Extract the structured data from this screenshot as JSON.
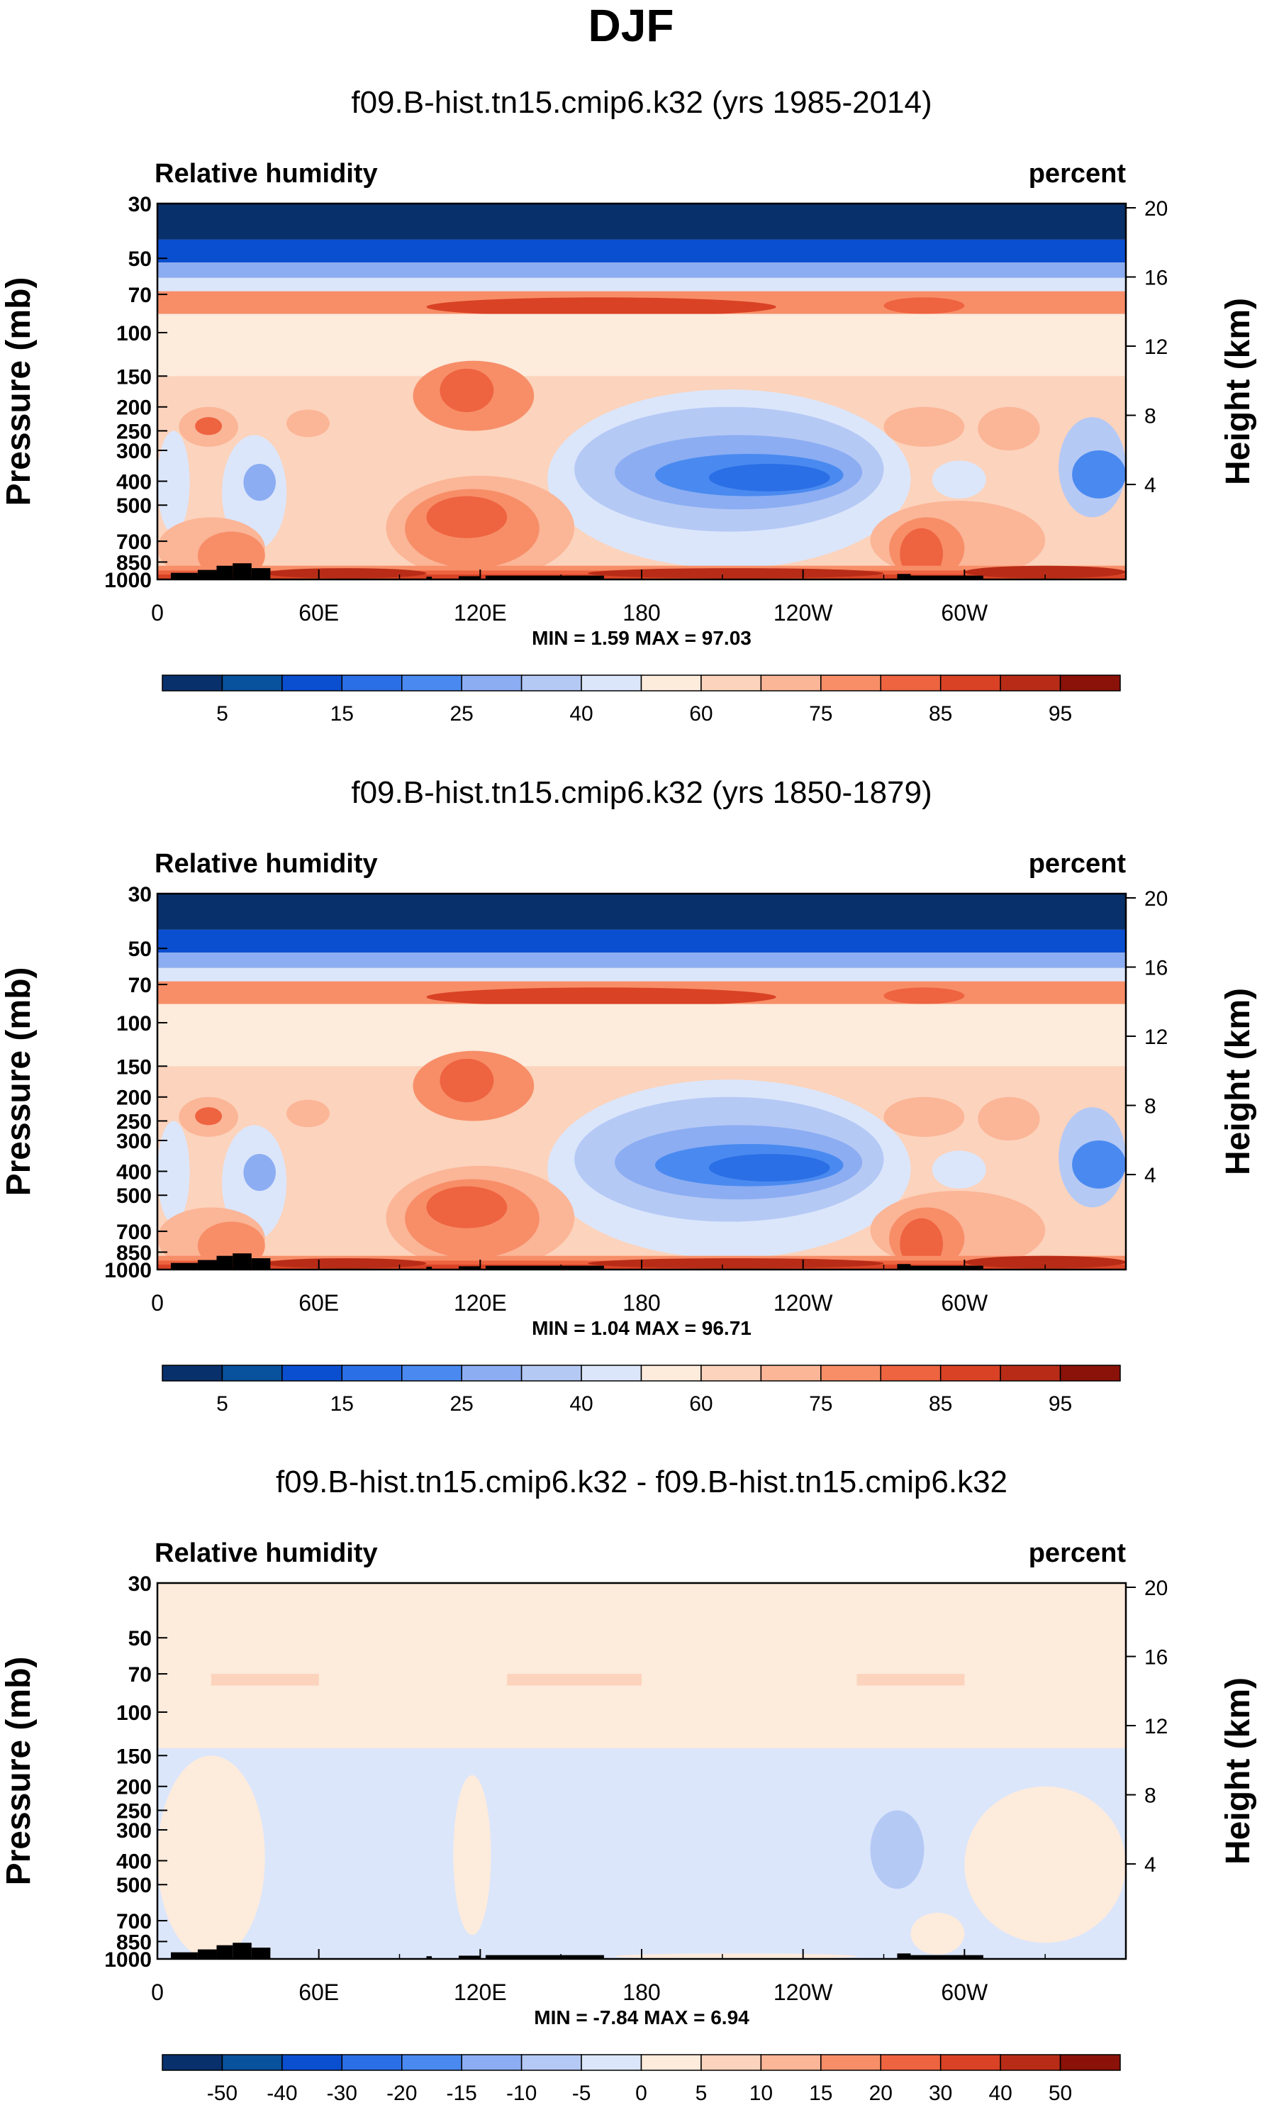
{
  "figure_title": "DJF",
  "colors": {
    "rh_levels": [
      "#08306b",
      "#08519c",
      "#0b4fd1",
      "#2b6fe6",
      "#4a8af0",
      "#8cadf2",
      "#b5c9f5",
      "#dbe6fb",
      "#fdebdc",
      "#fcd3bc",
      "#fbb597",
      "#f78e68",
      "#ee6340",
      "#d94225",
      "#b82c17",
      "#8a1208"
    ],
    "diff_levels": [
      "#08306b",
      "#08519c",
      "#0b4fd1",
      "#2b6fe6",
      "#4a8af0",
      "#8cadf2",
      "#b5c9f5",
      "#dbe6fb",
      "#fdebdc",
      "#fcd3bc",
      "#fbb597",
      "#f78e68",
      "#ee6340",
      "#d94225",
      "#b82c17",
      "#8a1208"
    ],
    "topography": "#000000"
  },
  "chart_data": [
    {
      "type": "heatmap",
      "title": "f09.B-hist.tn15.cmip6.k32 (yrs 1985-2014)",
      "left_label": "Relative humidity",
      "right_label": "percent",
      "ylabel": "Pressure (mb)",
      "ylabel_right": "Height (km)",
      "x_tick_labels": [
        "0",
        "60E",
        "120E",
        "180",
        "120W",
        "60W"
      ],
      "x_ticks_deg": [
        0,
        60,
        120,
        180,
        240,
        300
      ],
      "xlim": [
        0,
        360
      ],
      "y_tick_labels": [
        "30",
        "50",
        "70",
        "100",
        "150",
        "200",
        "250",
        "300",
        "400",
        "500",
        "700",
        "850",
        "1000"
      ],
      "y_ticks_mb": [
        30,
        50,
        70,
        100,
        150,
        200,
        250,
        300,
        400,
        500,
        700,
        850,
        1000
      ],
      "ylim_mb": [
        1000,
        30
      ],
      "height_tick_labels": [
        "20",
        "16",
        "12",
        "8",
        "4"
      ],
      "height_ticks_km": [
        20,
        16,
        12,
        8,
        4
      ],
      "stats_text": "MIN =   1.59   MAX =  97.03",
      "min": 1.59,
      "max": 97.03,
      "colorbar_labels": [
        "5",
        "15",
        "25",
        "40",
        "60",
        "75",
        "85",
        "95"
      ],
      "colorbar_label_positions": [
        1,
        3,
        5,
        7,
        9,
        11,
        13,
        15
      ],
      "palette": "rh"
    },
    {
      "type": "heatmap",
      "title": "f09.B-hist.tn15.cmip6.k32 (yrs 1850-1879)",
      "left_label": "Relative humidity",
      "right_label": "percent",
      "ylabel": "Pressure (mb)",
      "ylabel_right": "Height (km)",
      "x_tick_labels": [
        "0",
        "60E",
        "120E",
        "180",
        "120W",
        "60W"
      ],
      "x_ticks_deg": [
        0,
        60,
        120,
        180,
        240,
        300
      ],
      "xlim": [
        0,
        360
      ],
      "y_tick_labels": [
        "30",
        "50",
        "70",
        "100",
        "150",
        "200",
        "250",
        "300",
        "400",
        "500",
        "700",
        "850",
        "1000"
      ],
      "y_ticks_mb": [
        30,
        50,
        70,
        100,
        150,
        200,
        250,
        300,
        400,
        500,
        700,
        850,
        1000
      ],
      "ylim_mb": [
        1000,
        30
      ],
      "height_tick_labels": [
        "20",
        "16",
        "12",
        "8",
        "4"
      ],
      "height_ticks_km": [
        20,
        16,
        12,
        8,
        4
      ],
      "stats_text": "MIN =   1.04   MAX =  96.71",
      "min": 1.04,
      "max": 96.71,
      "colorbar_labels": [
        "5",
        "15",
        "25",
        "40",
        "60",
        "75",
        "85",
        "95"
      ],
      "colorbar_label_positions": [
        1,
        3,
        5,
        7,
        9,
        11,
        13,
        15
      ],
      "palette": "rh"
    },
    {
      "type": "heatmap",
      "title": "f09.B-hist.tn15.cmip6.k32 - f09.B-hist.tn15.cmip6.k32",
      "left_label": "Relative humidity",
      "right_label": "percent",
      "ylabel": "Pressure (mb)",
      "ylabel_right": "Height (km)",
      "x_tick_labels": [
        "0",
        "60E",
        "120E",
        "180",
        "120W",
        "60W"
      ],
      "x_ticks_deg": [
        0,
        60,
        120,
        180,
        240,
        300
      ],
      "xlim": [
        0,
        360
      ],
      "y_tick_labels": [
        "30",
        "50",
        "70",
        "100",
        "150",
        "200",
        "250",
        "300",
        "400",
        "500",
        "700",
        "850",
        "1000"
      ],
      "y_ticks_mb": [
        30,
        50,
        70,
        100,
        150,
        200,
        250,
        300,
        400,
        500,
        700,
        850,
        1000
      ],
      "ylim_mb": [
        1000,
        30
      ],
      "height_tick_labels": [
        "20",
        "16",
        "12",
        "8",
        "4"
      ],
      "height_ticks_km": [
        20,
        16,
        12,
        8,
        4
      ],
      "stats_text": "MIN =  -7.84   MAX =   6.94",
      "min": -7.84,
      "max": 6.94,
      "colorbar_labels": [
        "-50",
        "-40",
        "-30",
        "-20",
        "-15",
        "-10",
        "-5",
        "0",
        "5",
        "10",
        "15",
        "20",
        "30",
        "40",
        "50"
      ],
      "colorbar_label_positions": [
        1,
        2,
        3,
        4,
        5,
        6,
        7,
        8,
        9,
        10,
        11,
        12,
        13,
        14,
        15
      ],
      "palette": "diff"
    }
  ]
}
